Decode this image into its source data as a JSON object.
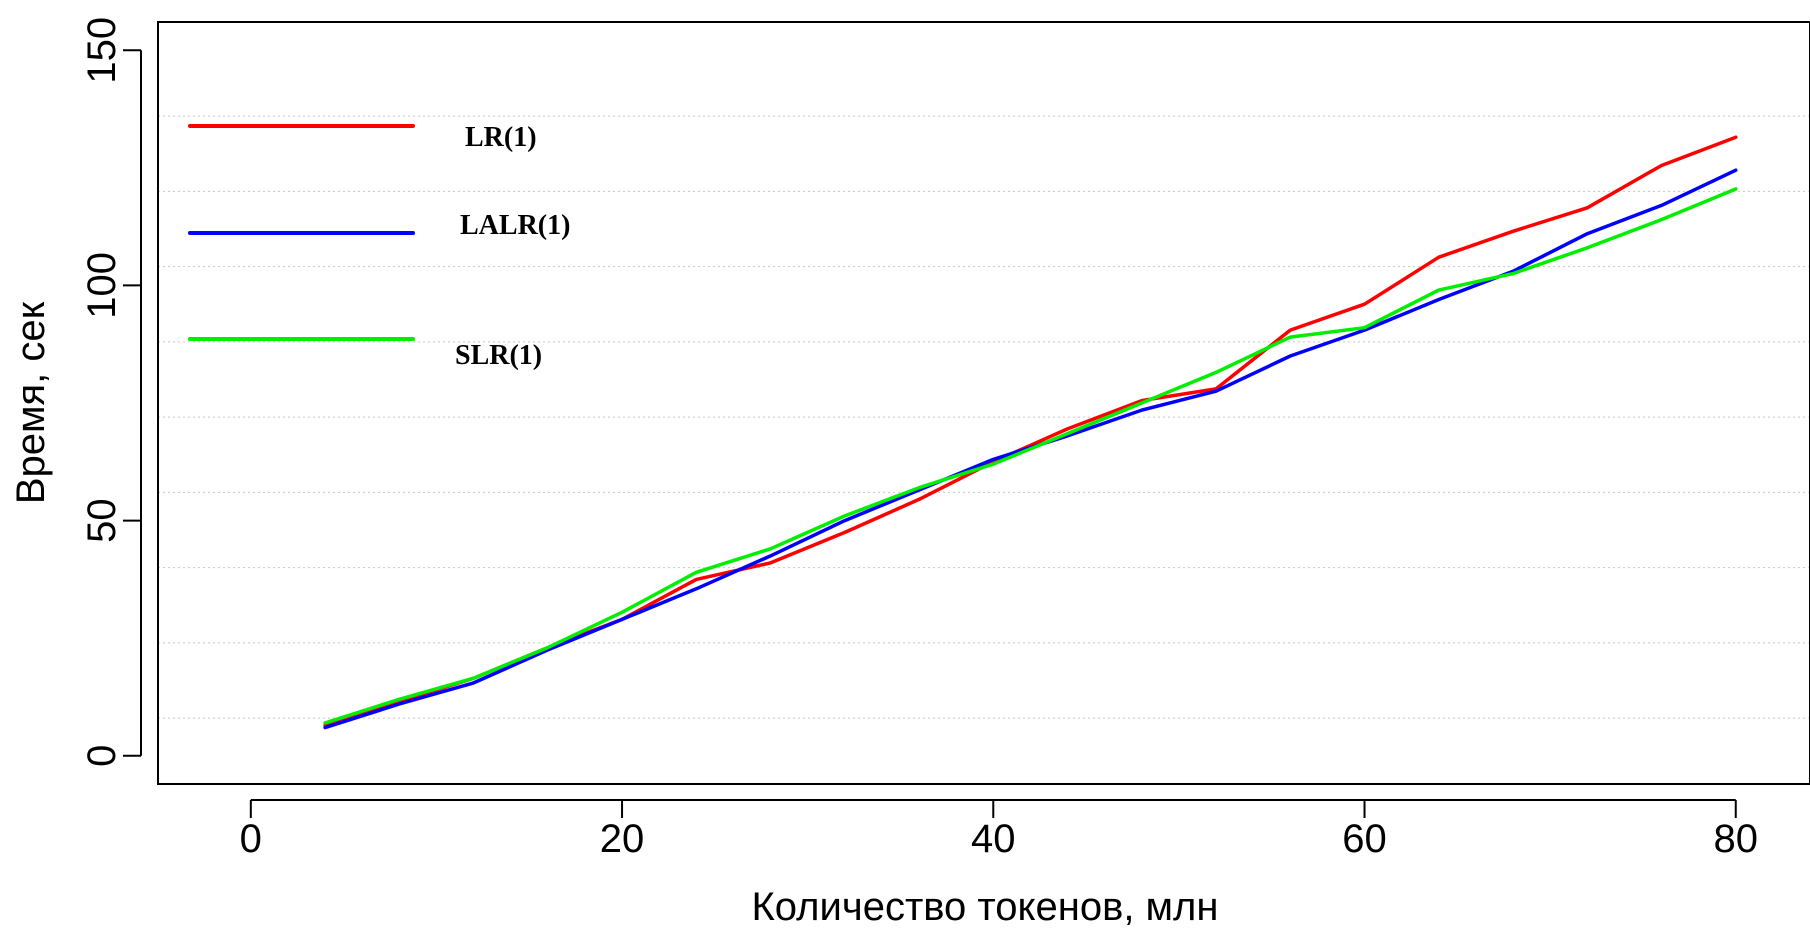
{
  "chart_data": {
    "type": "line",
    "title": "",
    "xlabel": "Количество токенов, млн",
    "ylabel": "Время, сек",
    "xlim": [
      -5,
      84
    ],
    "ylim": [
      -6,
      156
    ],
    "x_ticks": [
      0,
      20,
      40,
      60,
      80
    ],
    "x_tick_labels": [
      "0",
      "20",
      "40",
      "60",
      "80"
    ],
    "y_ticks": [
      0,
      50,
      100,
      150
    ],
    "y_tick_labels": [
      "0",
      "50",
      "100",
      "150"
    ],
    "y_gridlines": [
      8,
      24,
      40,
      56,
      72,
      88,
      104,
      120,
      136
    ],
    "grid": "horizontal dotted",
    "legend_position": "top-left",
    "x": [
      4,
      8,
      12,
      16,
      20,
      24,
      28,
      32,
      36,
      40,
      44,
      48,
      52,
      56,
      60,
      64,
      68,
      72,
      76,
      80
    ],
    "series": [
      {
        "name": "LR(1)",
        "color": "#ff0000",
        "values": [
          6.5,
          11.5,
          16.5,
          23,
          29,
          37.5,
          41,
          47.5,
          54.5,
          62.5,
          69.5,
          75.5,
          78,
          90.5,
          96,
          106,
          111.5,
          116.5,
          125.5,
          131.5
        ]
      },
      {
        "name": "LALR(1)",
        "color": "#0000ff",
        "values": [
          6,
          11,
          15.5,
          22.5,
          29,
          35.5,
          42.5,
          50,
          56.5,
          63,
          68,
          73.5,
          77.5,
          85,
          90.5,
          97,
          103,
          111,
          117,
          124.5
        ]
      },
      {
        "name": "SLR(1)",
        "color": "#00ee00",
        "values": [
          7,
          12,
          16.5,
          23,
          30.5,
          39,
          44,
          51,
          57,
          62,
          68.5,
          75,
          81.5,
          89,
          91,
          99,
          102.5,
          108,
          114,
          120.5
        ]
      }
    ]
  }
}
